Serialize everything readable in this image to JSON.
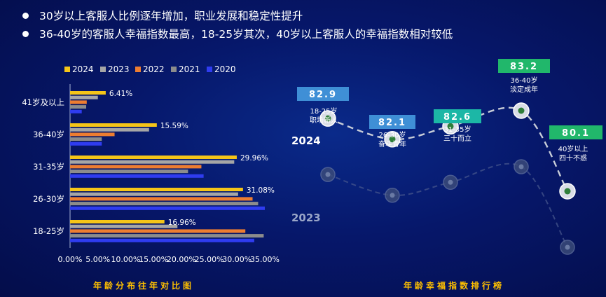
{
  "bullets": [
    "30岁以上客服人比例逐年增加，职业发展和稳定性提升",
    "36-40岁的客服人幸福指数最高，18-25岁其次，40岁以上客服人的幸福指数相对较低"
  ],
  "colors": {
    "2024": "#f5c518",
    "2023": "#a6a6a6",
    "2022": "#ed7d31",
    "2021": "#8c8c8c",
    "2020": "#2f3cf0",
    "background": "#06176a",
    "title": "#ffc000",
    "teal_badge": "#1cb7a6",
    "green_badge": "#21b76b",
    "blue_badge": "#3f8fd6"
  },
  "chart_data": [
    {
      "type": "bar",
      "orientation": "horizontal",
      "title": "年龄分布往年对比图",
      "categories": [
        "41岁及以上",
        "36-40岁",
        "31-35岁",
        "26-30岁",
        "18-25岁"
      ],
      "series": [
        {
          "name": "2024",
          "values": [
            6.41,
            15.59,
            29.96,
            31.08,
            16.96
          ]
        },
        {
          "name": "2023",
          "values": [
            5.0,
            14.2,
            29.5,
            30.2,
            19.3
          ]
        },
        {
          "name": "2022",
          "values": [
            3.0,
            8.0,
            23.6,
            32.8,
            31.5
          ]
        },
        {
          "name": "2021",
          "values": [
            2.9,
            5.7,
            21.2,
            33.8,
            34.8
          ]
        },
        {
          "name": "2020",
          "values": [
            2.1,
            5.7,
            24.0,
            35.0,
            33.1
          ]
        }
      ],
      "data_labels": [
        "6.41%",
        "15.59%",
        "29.96%",
        "31.08%",
        "16.96%"
      ],
      "xticks": [
        "0.00%",
        "5.00%",
        "10.00%",
        "15.00%",
        "20.00%",
        "25.00%",
        "30.00%",
        "35.00%"
      ],
      "xlim": [
        0,
        35
      ],
      "legend_position": "top"
    },
    {
      "type": "line",
      "title": "年龄幸福指数排行榜",
      "series": [
        {
          "name": "2024",
          "points": [
            {
              "group": "18-25岁",
              "caption": "职场新人",
              "value": 82.9
            },
            {
              "group": "26-30岁",
              "caption": "奋斗青年",
              "value": 82.1
            },
            {
              "group": "31-35岁",
              "caption": "三十而立",
              "value": 82.6
            },
            {
              "group": "36-40岁",
              "caption": "淡定成年",
              "value": 83.2
            },
            {
              "group": "40岁以上",
              "caption": "四十不惑",
              "value": 80.1
            }
          ]
        },
        {
          "name": "2023",
          "points": []
        }
      ],
      "value_labels": [
        "82.9",
        "82.1",
        "82.6",
        "83.2",
        "80.1"
      ]
    }
  ]
}
